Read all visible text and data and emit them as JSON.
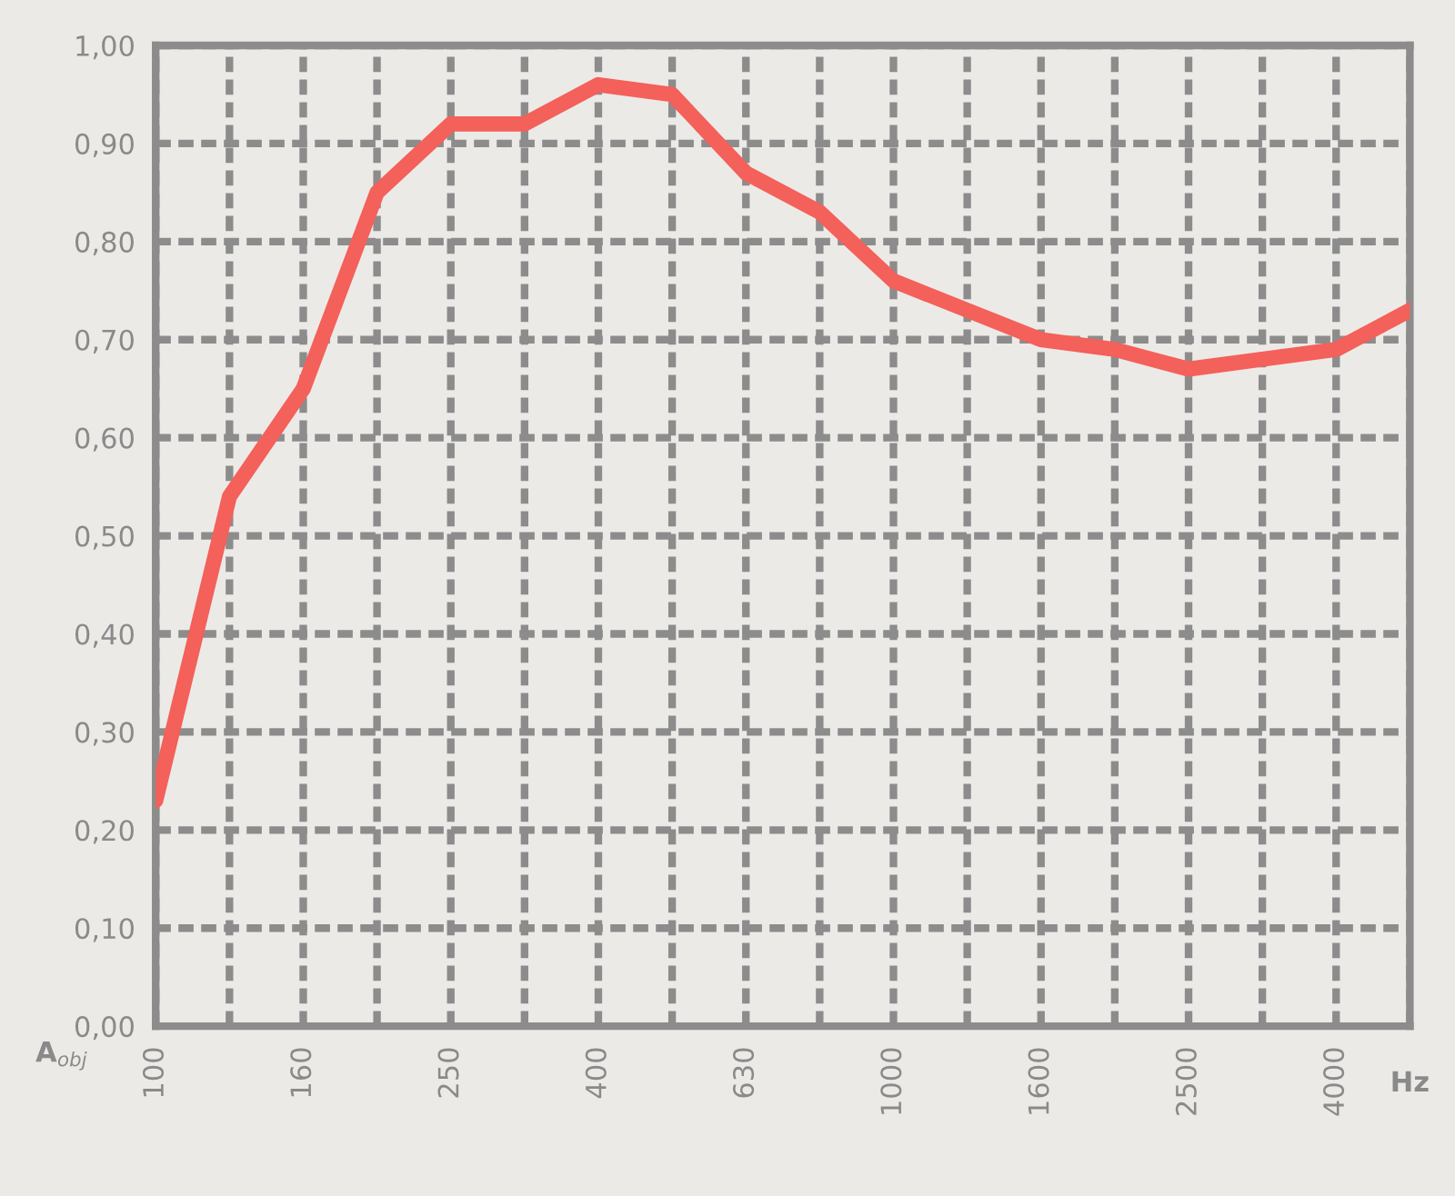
{
  "chart_data": {
    "type": "line",
    "xlabel": "Hz",
    "ylabel": "A$_{obj}$",
    "categories": [
      "100",
      null,
      "160",
      null,
      "250",
      null,
      "400",
      null,
      "630",
      null,
      "1000",
      null,
      "1600",
      null,
      "2500",
      null,
      "4000",
      null
    ],
    "series": [
      {
        "color": "#f4605a",
        "values": [
          0.23,
          0.54,
          0.65,
          0.85,
          0.92,
          0.92,
          0.96,
          0.95,
          0.87,
          0.83,
          0.76,
          0.73,
          0.7,
          0.69,
          0.67,
          0.68,
          0.69,
          0.73
        ]
      }
    ],
    "ylim": [
      0,
      1
    ],
    "yticks": [
      {
        "value": 0,
        "label": "0,00"
      },
      {
        "value": 0.1,
        "label": "0,10"
      },
      {
        "value": 0.2,
        "label": "0,20"
      },
      {
        "value": 0.3,
        "label": "0,30"
      },
      {
        "value": 0.4,
        "label": "0,40"
      },
      {
        "value": 0.5,
        "label": "0,50"
      },
      {
        "value": 0.6,
        "label": "0,60"
      },
      {
        "value": 0.7,
        "label": "0,70"
      },
      {
        "value": 0.8,
        "label": "0,80"
      },
      {
        "value": 0.9,
        "label": "0,90"
      },
      {
        "value": 1,
        "label": "1,00"
      }
    ],
    "grid": true,
    "line_style": "solid",
    "marker": "none"
  }
}
